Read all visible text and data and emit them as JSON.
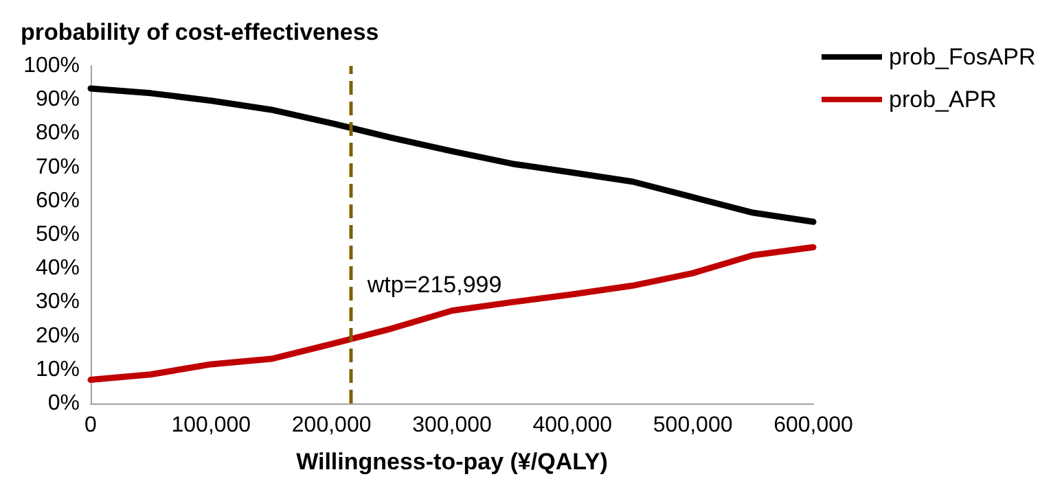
{
  "chart_data": {
    "type": "line",
    "title": "probability of cost-effectiveness",
    "xlabel": "Willingness-to-pay (¥/QALY)",
    "x": [
      0,
      50000,
      100000,
      150000,
      200000,
      250000,
      300000,
      350000,
      400000,
      450000,
      500000,
      550000,
      600000
    ],
    "series": [
      {
        "name": "prob_FosAPR",
        "color": "#000000",
        "values": [
          93.3,
          91.9,
          89.7,
          87,
          83,
          78.7,
          74.7,
          71,
          68.4,
          65.7,
          61.1,
          56.5,
          53.8
        ]
      },
      {
        "name": "prob_APR",
        "color": "#c00000",
        "values": [
          7,
          8.6,
          11.6,
          13.2,
          17.6,
          22.2,
          27.5,
          30,
          32.3,
          34.9,
          38.6,
          43.9,
          46.3
        ]
      }
    ],
    "xlim": [
      0,
      600000
    ],
    "xticks": [
      {
        "value": 0,
        "label": "0"
      },
      {
        "value": 100000,
        "label": "100,000"
      },
      {
        "value": 200000,
        "label": "200,000"
      },
      {
        "value": 300000,
        "label": "300,000"
      },
      {
        "value": 400000,
        "label": "400,000"
      },
      {
        "value": 500000,
        "label": "500,000"
      },
      {
        "value": 600000,
        "label": "600,000"
      }
    ],
    "ylim": [
      0,
      100
    ],
    "yticks": [
      {
        "value": 0,
        "label": "0%"
      },
      {
        "value": 10,
        "label": "10%"
      },
      {
        "value": 20,
        "label": "20%"
      },
      {
        "value": 30,
        "label": "30%"
      },
      {
        "value": 40,
        "label": "40%"
      },
      {
        "value": 50,
        "label": "50%"
      },
      {
        "value": 60,
        "label": "60%"
      },
      {
        "value": 70,
        "label": "70%"
      },
      {
        "value": 80,
        "label": "80%"
      },
      {
        "value": 90,
        "label": "90%"
      },
      {
        "value": 100,
        "label": "100%"
      }
    ],
    "ref_lines": [
      {
        "axis": "x",
        "value": 215999,
        "label": "wtp=215,999",
        "color": "#7f6000",
        "line_style": "dashed"
      }
    ],
    "grid": false,
    "legend": "top right",
    "marker": "none",
    "line_style": "solid"
  }
}
